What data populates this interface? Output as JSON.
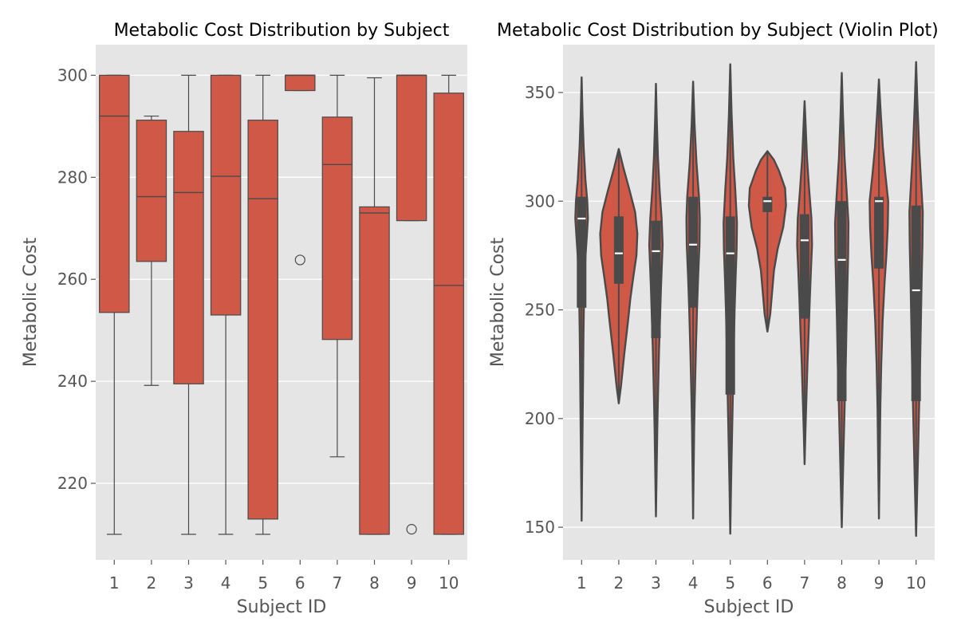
{
  "colors": {
    "background": "#ffffff",
    "panel": "#e5e5e5",
    "grid": "#ffffff",
    "box_fill": "#cf5846",
    "box_line": "#4a4a4a",
    "violin_fill": "#cf5846",
    "violin_line": "#4a4a4a",
    "inner_box": "#4a4a4a",
    "median_mark": "#ffffff",
    "text": "#555555",
    "title": "#000000"
  },
  "chart_data": [
    {
      "type": "box",
      "title": "Metabolic Cost Distribution by Subject",
      "xlabel": "Subject ID",
      "ylabel": "Metabolic Cost",
      "categories": [
        "1",
        "2",
        "3",
        "4",
        "5",
        "6",
        "7",
        "8",
        "9",
        "10"
      ],
      "ylim": [
        205,
        306
      ],
      "yticks": [
        220,
        240,
        260,
        280,
        300
      ],
      "grid": true,
      "boxes": [
        {
          "whisker_low": 210,
          "q1": 253.5,
          "median": 292,
          "q3": 300,
          "whisker_high": 300,
          "outliers": []
        },
        {
          "whisker_low": 239.2,
          "q1": 263.5,
          "median": 276.2,
          "q3": 291.2,
          "whisker_high": 292,
          "outliers": []
        },
        {
          "whisker_low": 210,
          "q1": 239.5,
          "median": 277,
          "q3": 289,
          "whisker_high": 300,
          "outliers": []
        },
        {
          "whisker_low": 210,
          "q1": 253,
          "median": 280.2,
          "q3": 300,
          "whisker_high": 300,
          "outliers": []
        },
        {
          "whisker_low": 210,
          "q1": 213,
          "median": 275.8,
          "q3": 291.2,
          "whisker_high": 300,
          "outliers": []
        },
        {
          "whisker_low": 297,
          "q1": 297,
          "median": 300,
          "q3": 300,
          "whisker_high": 300,
          "outliers": [
            263.8
          ]
        },
        {
          "whisker_low": 225.2,
          "q1": 248.2,
          "median": 282.5,
          "q3": 291.8,
          "whisker_high": 300,
          "outliers": []
        },
        {
          "whisker_low": 210,
          "q1": 210,
          "median": 273,
          "q3": 274.2,
          "whisker_high": 299.5,
          "outliers": []
        },
        {
          "whisker_low": 271.5,
          "q1": 271.5,
          "median": 300,
          "q3": 300,
          "whisker_high": 300,
          "outliers": [
            211
          ]
        },
        {
          "whisker_low": 210,
          "q1": 210,
          "median": 258.8,
          "q3": 296.5,
          "whisker_high": 300,
          "outliers": []
        }
      ]
    },
    {
      "type": "violin",
      "title": "Metabolic Cost Distribution by Subject (Violin Plot)",
      "xlabel": "Subject ID",
      "ylabel": "Metabolic Cost",
      "categories": [
        "1",
        "2",
        "3",
        "4",
        "5",
        "6",
        "7",
        "8",
        "9",
        "10"
      ],
      "ylim": [
        135,
        372
      ],
      "yticks": [
        150,
        200,
        250,
        300,
        350
      ],
      "grid": true,
      "violins": [
        {
          "min": 153,
          "max": 357,
          "q1": 251,
          "median": 292,
          "q3": 302,
          "width_max": 0.17,
          "profile": [
            [
              153,
              0.0
            ],
            [
              175,
              0.08
            ],
            [
              195,
              0.15
            ],
            [
              210,
              0.2
            ],
            [
              225,
              0.25
            ],
            [
              240,
              0.3
            ],
            [
              255,
              0.38
            ],
            [
              265,
              0.48
            ],
            [
              275,
              0.62
            ],
            [
              285,
              0.85
            ],
            [
              292,
              1.0
            ],
            [
              300,
              0.9
            ],
            [
              310,
              0.6
            ],
            [
              325,
              0.32
            ],
            [
              340,
              0.14
            ],
            [
              357,
              0.0
            ]
          ]
        },
        {
          "min": 207,
          "max": 324,
          "q1": 262,
          "median": 276,
          "q3": 293,
          "width_max": 0.5,
          "profile": [
            [
              207,
              0.0
            ],
            [
              215,
              0.12
            ],
            [
              230,
              0.3
            ],
            [
              245,
              0.5
            ],
            [
              255,
              0.62
            ],
            [
              265,
              0.78
            ],
            [
              275,
              0.95
            ],
            [
              285,
              1.0
            ],
            [
              295,
              0.88
            ],
            [
              305,
              0.58
            ],
            [
              315,
              0.26
            ],
            [
              324,
              0.0
            ]
          ]
        },
        {
          "min": 155,
          "max": 354,
          "q1": 237,
          "median": 277,
          "q3": 291,
          "width_max": 0.18,
          "profile": [
            [
              155,
              0.0
            ],
            [
              175,
              0.1
            ],
            [
              195,
              0.2
            ],
            [
              210,
              0.3
            ],
            [
              230,
              0.45
            ],
            [
              245,
              0.6
            ],
            [
              260,
              0.75
            ],
            [
              272,
              0.9
            ],
            [
              280,
              1.0
            ],
            [
              292,
              0.85
            ],
            [
              305,
              0.55
            ],
            [
              320,
              0.3
            ],
            [
              338,
              0.12
            ],
            [
              354,
              0.0
            ]
          ]
        },
        {
          "min": 154,
          "max": 355,
          "q1": 251,
          "median": 280,
          "q3": 302,
          "width_max": 0.18,
          "profile": [
            [
              154,
              0.0
            ],
            [
              175,
              0.08
            ],
            [
              195,
              0.16
            ],
            [
              210,
              0.25
            ],
            [
              230,
              0.4
            ],
            [
              250,
              0.58
            ],
            [
              265,
              0.75
            ],
            [
              280,
              0.95
            ],
            [
              292,
              1.0
            ],
            [
              302,
              0.88
            ],
            [
              318,
              0.5
            ],
            [
              335,
              0.22
            ],
            [
              355,
              0.0
            ]
          ]
        },
        {
          "min": 147,
          "max": 363,
          "q1": 211,
          "median": 276,
          "q3": 293,
          "width_max": 0.18,
          "profile": [
            [
              147,
              0.0
            ],
            [
              170,
              0.12
            ],
            [
              190,
              0.25
            ],
            [
              210,
              0.38
            ],
            [
              230,
              0.5
            ],
            [
              250,
              0.65
            ],
            [
              265,
              0.8
            ],
            [
              278,
              0.95
            ],
            [
              290,
              1.0
            ],
            [
              305,
              0.75
            ],
            [
              320,
              0.45
            ],
            [
              340,
              0.2
            ],
            [
              363,
              0.0
            ]
          ]
        },
        {
          "min": 240,
          "max": 323,
          "q1": 295,
          "median": 300,
          "q3": 302,
          "width_max": 0.5,
          "profile": [
            [
              240,
              0.0
            ],
            [
              248,
              0.15
            ],
            [
              258,
              0.25
            ],
            [
              268,
              0.35
            ],
            [
              278,
              0.55
            ],
            [
              288,
              0.85
            ],
            [
              298,
              1.0
            ],
            [
              306,
              0.95
            ],
            [
              314,
              0.62
            ],
            [
              319,
              0.35
            ],
            [
              323,
              0.0
            ]
          ]
        },
        {
          "min": 179,
          "max": 346,
          "q1": 246,
          "median": 282,
          "q3": 294,
          "width_max": 0.2,
          "profile": [
            [
              179,
              0.0
            ],
            [
              195,
              0.12
            ],
            [
              210,
              0.25
            ],
            [
              225,
              0.38
            ],
            [
              240,
              0.55
            ],
            [
              255,
              0.7
            ],
            [
              268,
              0.85
            ],
            [
              280,
              1.0
            ],
            [
              292,
              0.92
            ],
            [
              305,
              0.62
            ],
            [
              320,
              0.32
            ],
            [
              335,
              0.14
            ],
            [
              346,
              0.0
            ]
          ]
        },
        {
          "min": 150,
          "max": 359,
          "q1": 208,
          "median": 273,
          "q3": 300,
          "width_max": 0.18,
          "profile": [
            [
              150,
              0.0
            ],
            [
              170,
              0.15
            ],
            [
              190,
              0.3
            ],
            [
              208,
              0.45
            ],
            [
              225,
              0.6
            ],
            [
              245,
              0.72
            ],
            [
              262,
              0.85
            ],
            [
              275,
              0.95
            ],
            [
              290,
              1.0
            ],
            [
              305,
              0.72
            ],
            [
              320,
              0.42
            ],
            [
              340,
              0.18
            ],
            [
              359,
              0.0
            ]
          ]
        },
        {
          "min": 154,
          "max": 356,
          "q1": 269,
          "median": 300,
          "q3": 302,
          "width_max": 0.25,
          "profile": [
            [
              154,
              0.0
            ],
            [
              180,
              0.08
            ],
            [
              205,
              0.15
            ],
            [
              225,
              0.25
            ],
            [
              245,
              0.4
            ],
            [
              262,
              0.6
            ],
            [
              275,
              0.8
            ],
            [
              288,
              0.95
            ],
            [
              300,
              1.0
            ],
            [
              312,
              0.7
            ],
            [
              325,
              0.42
            ],
            [
              340,
              0.2
            ],
            [
              356,
              0.0
            ]
          ]
        },
        {
          "min": 146,
          "max": 364,
          "q1": 208,
          "median": 259,
          "q3": 298,
          "width_max": 0.18,
          "profile": [
            [
              146,
              0.0
            ],
            [
              165,
              0.15
            ],
            [
              185,
              0.3
            ],
            [
              205,
              0.45
            ],
            [
              225,
              0.6
            ],
            [
              245,
              0.72
            ],
            [
              262,
              0.82
            ],
            [
              280,
              0.95
            ],
            [
              295,
              1.0
            ],
            [
              310,
              0.72
            ],
            [
              325,
              0.45
            ],
            [
              345,
              0.2
            ],
            [
              364,
              0.0
            ]
          ]
        }
      ]
    }
  ]
}
